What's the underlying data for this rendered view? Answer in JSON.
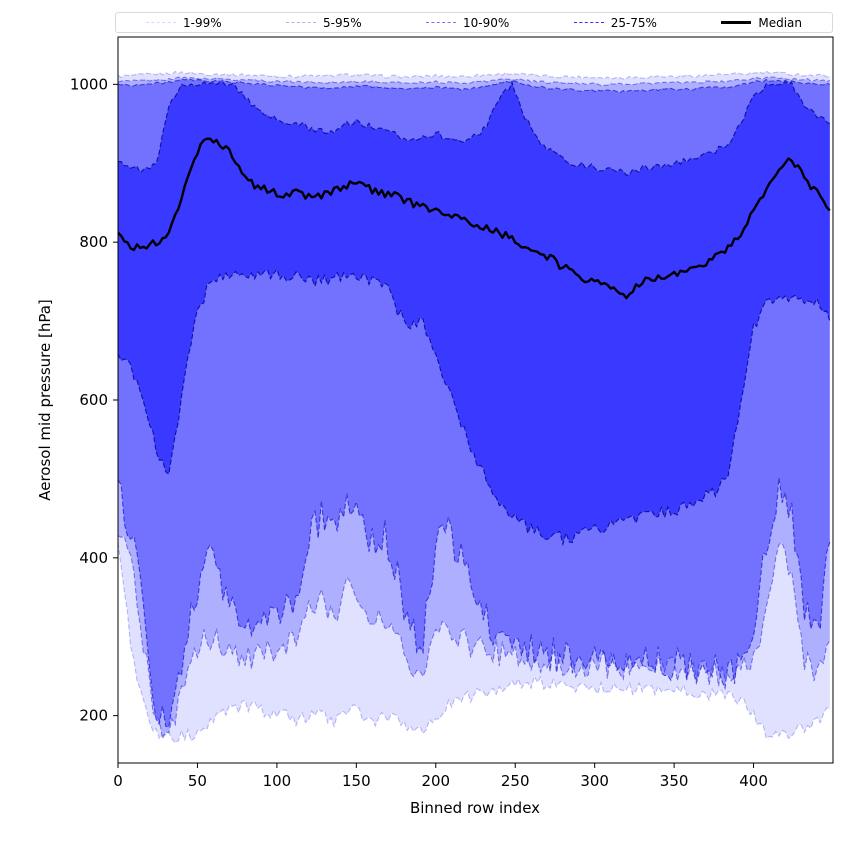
{
  "figure": {
    "background": "#ffffff"
  },
  "legend": {
    "entries": [
      {
        "label": "1-99%",
        "style": "dashed",
        "color": "rgba(0,0,255,0.15)"
      },
      {
        "label": "5-95%",
        "style": "dashed",
        "color": "rgba(0,0,255,0.32)"
      },
      {
        "label": "10-90%",
        "style": "dashed",
        "color": "rgba(0,0,255,0.55)"
      },
      {
        "label": "25-75%",
        "style": "dashed",
        "color": "rgba(0,0,255,0.8)"
      },
      {
        "label": "Median",
        "style": "solid",
        "color": "#000000"
      }
    ]
  },
  "chart_data": {
    "type": "area",
    "title": "",
    "xlabel": "Binned row index",
    "ylabel": "Aerosol mid pressure [hPa]",
    "xlim": [
      0,
      450
    ],
    "ylim": [
      140,
      1060
    ],
    "x_ticks": [
      0,
      50,
      100,
      150,
      200,
      250,
      300,
      350,
      400
    ],
    "y_ticks": [
      200,
      400,
      600,
      800,
      1000
    ],
    "grid": false,
    "legend_position": "top-outside-horizontal",
    "x": [
      0,
      8,
      16,
      24,
      32,
      40,
      48,
      56,
      64,
      72,
      80,
      88,
      96,
      104,
      112,
      120,
      128,
      136,
      144,
      152,
      160,
      168,
      176,
      184,
      192,
      200,
      208,
      216,
      224,
      232,
      240,
      248,
      256,
      264,
      272,
      280,
      288,
      296,
      304,
      312,
      320,
      328,
      336,
      344,
      352,
      360,
      368,
      376,
      384,
      392,
      400,
      408,
      416,
      424,
      432,
      440,
      448
    ],
    "bands": [
      {
        "name": "1-99%",
        "fill": "rgba(0,0,255,0.12)",
        "edge": "rgba(120,120,240,0.5)",
        "jitter_low": 9,
        "jitter_high": 2,
        "low": [
          425,
          290,
          215,
          178,
          172,
          174,
          178,
          184,
          198,
          208,
          214,
          208,
          204,
          200,
          194,
          198,
          204,
          194,
          208,
          204,
          194,
          198,
          194,
          188,
          186,
          198,
          214,
          220,
          228,
          232,
          236,
          238,
          240,
          242,
          240,
          238,
          236,
          234,
          236,
          238,
          236,
          234,
          236,
          234,
          232,
          230,
          228,
          226,
          224,
          220,
          200,
          180,
          172,
          174,
          184,
          194,
          208
        ],
        "high": [
          1010,
          1011,
          1012,
          1013,
          1014,
          1015,
          1014,
          1013,
          1013,
          1012,
          1012,
          1011,
          1011,
          1010,
          1010,
          1011,
          1010,
          1011,
          1012,
          1012,
          1011,
          1010,
          1010,
          1009,
          1010,
          1011,
          1010,
          1010,
          1011,
          1012,
          1013,
          1014,
          1012,
          1011,
          1010,
          1010,
          1009,
          1009,
          1009,
          1008,
          1009,
          1009,
          1010,
          1010,
          1010,
          1011,
          1011,
          1012,
          1012,
          1013,
          1014,
          1015,
          1014,
          1013,
          1012,
          1011,
          1011
        ]
      },
      {
        "name": "5-95%",
        "fill": "rgba(0,0,255,0.22)",
        "edge": "rgba(40,40,220,0.55)",
        "jitter_low": 18,
        "jitter_high": 1.5,
        "low": [
          440,
          400,
          295,
          190,
          175,
          225,
          280,
          300,
          290,
          278,
          268,
          275,
          282,
          288,
          295,
          330,
          350,
          322,
          358,
          338,
          318,
          328,
          298,
          258,
          252,
          298,
          308,
          298,
          286,
          282,
          278,
          276,
          274,
          272,
          270,
          268,
          266,
          264,
          266,
          264,
          262,
          264,
          266,
          262,
          260,
          258,
          256,
          254,
          252,
          256,
          272,
          338,
          418,
          378,
          275,
          248,
          295
        ],
        "high": [
          1004,
          1004,
          1005,
          1005,
          1007,
          1008,
          1008,
          1007,
          1007,
          1006,
          1006,
          1005,
          1004,
          1004,
          1003,
          1003,
          1002,
          1003,
          1003,
          1004,
          1003,
          1003,
          1002,
          1002,
          1003,
          1003,
          1002,
          1002,
          1003,
          1004,
          1006,
          1007,
          1005,
          1003,
          1002,
          1002,
          1001,
          1001,
          1000,
          1000,
          1000,
          1001,
          1001,
          1002,
          1002,
          1002,
          1003,
          1003,
          1004,
          1005,
          1007,
          1008,
          1008,
          1007,
          1006,
          1005,
          1005
        ]
      },
      {
        "name": "10-90%",
        "fill": "rgba(0,0,255,0.35)",
        "edge": "rgba(20,20,200,0.7)",
        "jitter_low": 22,
        "jitter_high": 1.5,
        "low": [
          500,
          430,
          340,
          210,
          185,
          260,
          350,
          400,
          380,
          330,
          305,
          315,
          325,
          335,
          345,
          420,
          455,
          430,
          465,
          445,
          420,
          430,
          380,
          305,
          295,
          420,
          430,
          400,
          350,
          320,
          300,
          290,
          285,
          282,
          278,
          275,
          272,
          270,
          272,
          270,
          268,
          270,
          272,
          268,
          265,
          262,
          260,
          258,
          255,
          262,
          300,
          420,
          480,
          455,
          330,
          300,
          420
        ],
        "high": [
          1000,
          999,
          1000,
          1001,
          1003,
          1005,
          1005,
          1004,
          1004,
          1003,
          1002,
          1000,
          999,
          998,
          997,
          996,
          995,
          996,
          997,
          998,
          997,
          996,
          995,
          994,
          995,
          996,
          995,
          994,
          995,
          997,
          1002,
          1004,
          1000,
          997,
          995,
          994,
          993,
          992,
          992,
          991,
          991,
          992,
          993,
          993,
          994,
          994,
          995,
          996,
          997,
          999,
          1003,
          1005,
          1005,
          1004,
          1002,
          1000,
          1000
        ]
      },
      {
        "name": "25-75%",
        "fill": "rgba(0,0,255,0.5)",
        "edge": "rgba(10,10,150,0.9)",
        "jitter_low": 8,
        "jitter_high": 4,
        "low": [
          655,
          640,
          600,
          540,
          505,
          600,
          700,
          740,
          755,
          758,
          752,
          755,
          760,
          758,
          755,
          752,
          750,
          755,
          760,
          758,
          752,
          748,
          710,
          695,
          700,
          660,
          610,
          570,
          530,
          500,
          470,
          452,
          440,
          432,
          428,
          425,
          428,
          432,
          438,
          442,
          445,
          450,
          455,
          458,
          462,
          468,
          475,
          485,
          505,
          600,
          690,
          725,
          732,
          730,
          728,
          722,
          700
        ],
        "high": [
          905,
          895,
          890,
          898,
          970,
          1000,
          1002,
          1001,
          1000,
          1000,
          985,
          965,
          958,
          952,
          950,
          945,
          940,
          942,
          950,
          952,
          945,
          940,
          935,
          930,
          935,
          938,
          930,
          928,
          935,
          945,
          985,
          1000,
          960,
          930,
          915,
          905,
          900,
          896,
          893,
          890,
          888,
          892,
          895,
          898,
          900,
          905,
          908,
          915,
          925,
          950,
          985,
          1000,
          1002,
          1000,
          975,
          958,
          950
        ]
      }
    ],
    "median": {
      "name": "Median",
      "color": "#000000",
      "width": 2.4,
      "jitter": 5,
      "values": [
        810,
        795,
        790,
        800,
        812,
        855,
        905,
        935,
        925,
        910,
        882,
        870,
        865,
        860,
        862,
        858,
        860,
        866,
        872,
        875,
        865,
        862,
        858,
        850,
        845,
        840,
        835,
        828,
        820,
        818,
        812,
        805,
        795,
        788,
        780,
        768,
        760,
        752,
        748,
        745,
        732,
        748,
        752,
        758,
        762,
        768,
        772,
        780,
        795,
        812,
        840,
        865,
        890,
        905,
        882,
        862,
        840
      ]
    }
  }
}
